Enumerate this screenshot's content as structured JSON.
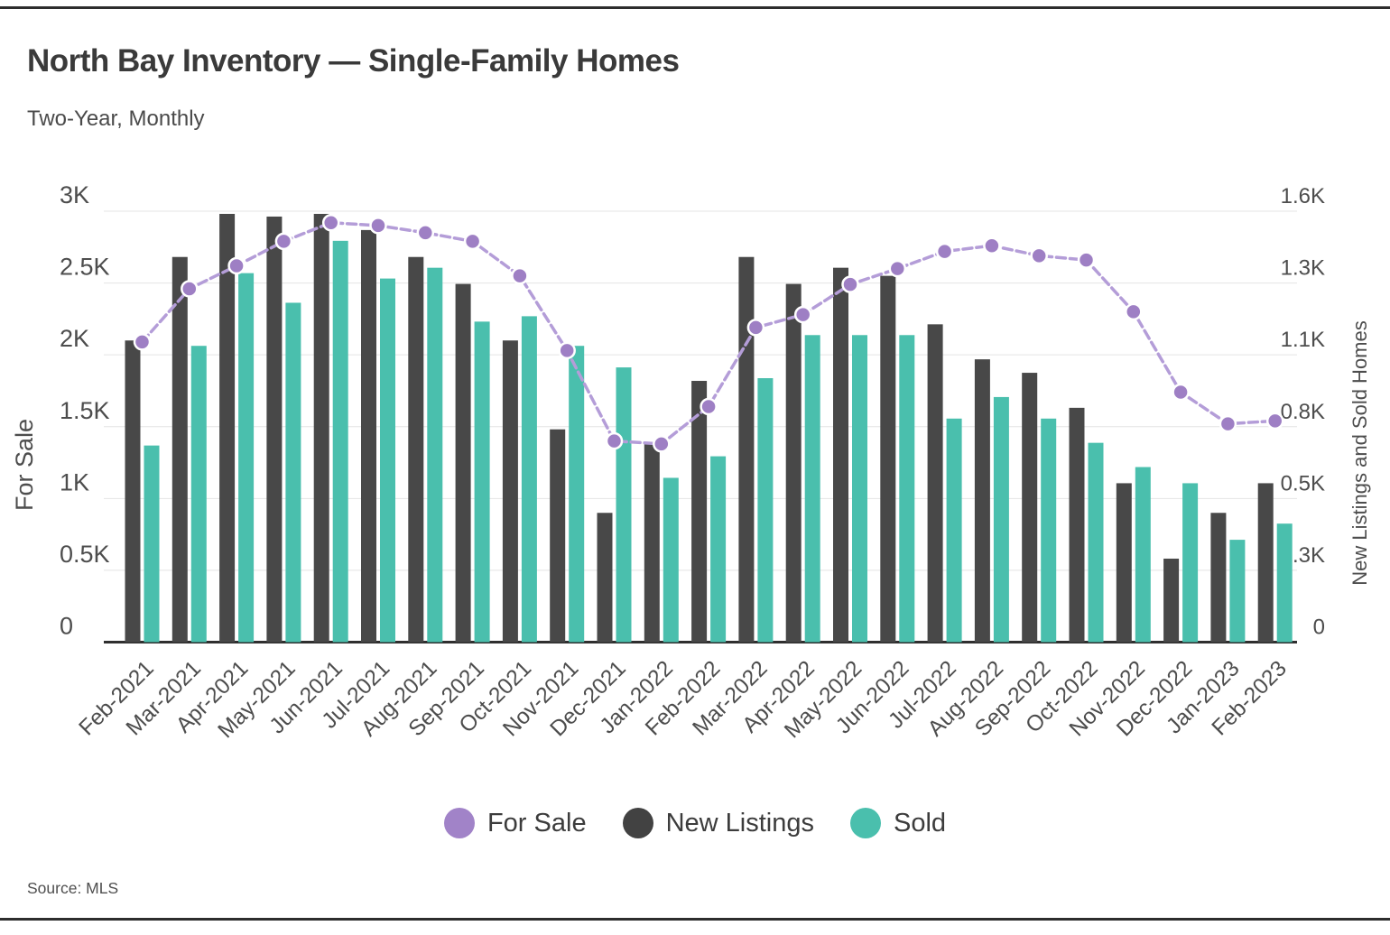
{
  "chart_data": {
    "type": "combo-bar-line",
    "title": "North Bay Inventory — Single-Family Homes",
    "subtitle": "Two-Year, Monthly",
    "categories": [
      "Feb-2021",
      "Mar-2021",
      "Apr-2021",
      "May-2021",
      "Jun-2021",
      "Jul-2021",
      "Aug-2021",
      "Sep-2021",
      "Oct-2021",
      "Nov-2021",
      "Dec-2021",
      "Jan-2022",
      "Feb-2022",
      "Mar-2022",
      "Apr-2022",
      "May-2022",
      "Jun-2022",
      "Jul-2022",
      "Aug-2022",
      "Sep-2022",
      "Oct-2022",
      "Nov-2022",
      "Dec-2022",
      "Jan-2023",
      "Feb-2023"
    ],
    "series": [
      {
        "name": "For Sale",
        "kind": "line",
        "axis": "left",
        "color": "#9e7fc4",
        "values": [
          2090,
          2460,
          2620,
          2790,
          2920,
          2900,
          2850,
          2790,
          2550,
          2030,
          1400,
          1380,
          1640,
          2190,
          2280,
          2490,
          2600,
          2720,
          2760,
          2690,
          2660,
          2300,
          1740,
          1520,
          1540
        ]
      },
      {
        "name": "New Listings",
        "kind": "bar",
        "axis": "right",
        "color": "#484848",
        "values": [
          1120,
          1430,
          1590,
          1580,
          1590,
          1530,
          1430,
          1330,
          1120,
          790,
          480,
          740,
          970,
          1430,
          1330,
          1390,
          1360,
          1180,
          1050,
          1000,
          870,
          590,
          310,
          480,
          590
        ]
      },
      {
        "name": "Sold",
        "kind": "bar",
        "axis": "right",
        "color": "#4abfad",
        "values": [
          730,
          1100,
          1370,
          1260,
          1490,
          1350,
          1390,
          1190,
          1210,
          1100,
          1020,
          610,
          690,
          980,
          1140,
          1140,
          1140,
          830,
          910,
          830,
          740,
          650,
          590,
          380,
          440
        ]
      }
    ],
    "left_axis": {
      "label": "For Sale",
      "min": 0,
      "max": 3000,
      "tick_labels": [
        "3K",
        "2.5K",
        "2K",
        "1.5K",
        "1K",
        "0.5K",
        "0"
      ]
    },
    "right_axis": {
      "label": "New Listings and Sold Homes",
      "min": 0,
      "max": 1600,
      "tick_labels": [
        "1.6K",
        "1.3K",
        "1.1K",
        "0.8K",
        "0.5K",
        "0.3K",
        "0"
      ]
    },
    "grid": "horizontal",
    "line_style": {
      "dash": "10 5",
      "line_color": "#b49dd8",
      "dot_color": "#9e7fc4",
      "dot_stroke": "#ffffff"
    }
  },
  "legend": {
    "items": [
      {
        "label": "For Sale",
        "color": "#a183c8"
      },
      {
        "label": "New Listings",
        "color": "#424242"
      },
      {
        "label": "Sold",
        "color": "#4abfad"
      }
    ]
  },
  "footer": {
    "source": "Source: MLS"
  }
}
